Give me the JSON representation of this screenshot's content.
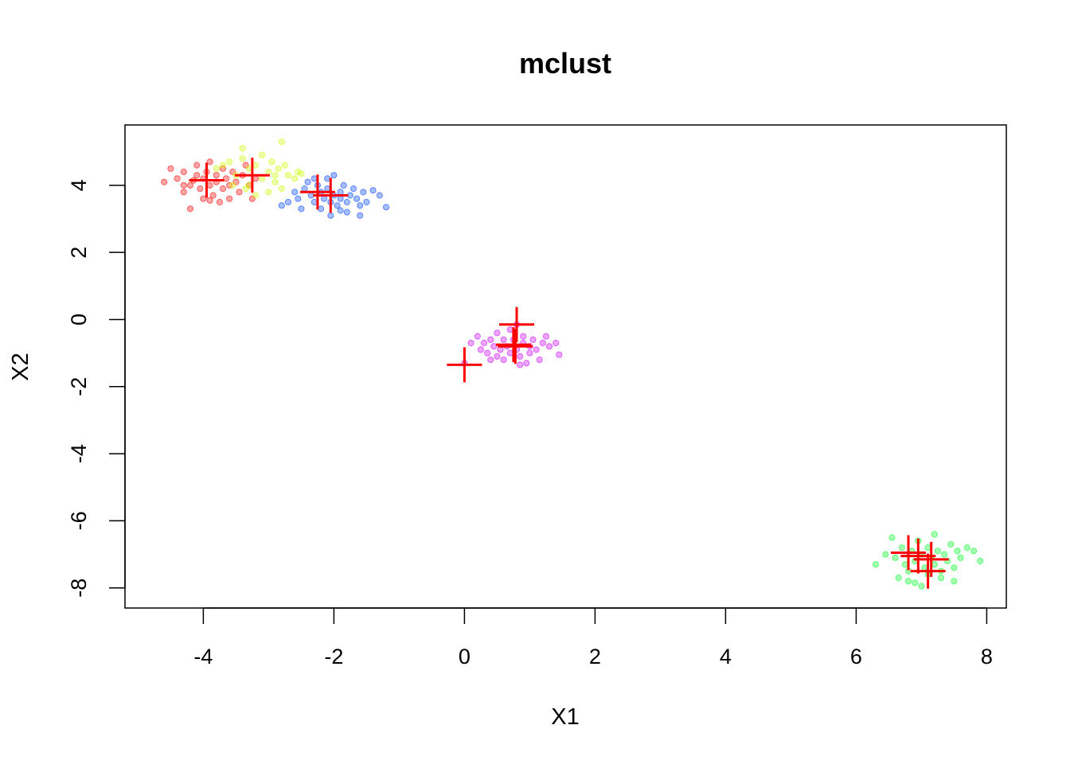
{
  "chart_data": {
    "type": "scatter",
    "title": "mclust",
    "xlabel": "X1",
    "ylabel": "X2",
    "xlim": [
      -5.2,
      8.3
    ],
    "ylim": [
      -8.6,
      5.8
    ],
    "x_ticks": [
      "-4",
      "-2",
      "0",
      "2",
      "4",
      "6",
      "8"
    ],
    "x_tick_values": [
      -4,
      -2,
      0,
      2,
      4,
      6,
      8
    ],
    "y_ticks": [
      "-8",
      "-6",
      "-4",
      "-2",
      "0",
      "2",
      "4"
    ],
    "y_tick_values": [
      -8,
      -6,
      -4,
      -2,
      0,
      2,
      4
    ],
    "grid": false,
    "legend": "none",
    "series": [
      {
        "color": "#ff0000",
        "points": [
          [
            -4.6,
            4.1
          ],
          [
            -4.5,
            4.5
          ],
          [
            -4.4,
            4.2
          ],
          [
            -4.3,
            3.8
          ],
          [
            -4.3,
            4.4
          ],
          [
            -4.2,
            4.0
          ],
          [
            -4.2,
            3.3
          ],
          [
            -4.1,
            4.3
          ],
          [
            -4.1,
            4.6
          ],
          [
            -4.05,
            3.9
          ],
          [
            -4.0,
            4.2
          ],
          [
            -4.0,
            3.6
          ],
          [
            -3.95,
            4.4
          ],
          [
            -3.9,
            4.0
          ],
          [
            -3.9,
            4.7
          ],
          [
            -3.85,
            3.7
          ],
          [
            -3.8,
            4.1
          ],
          [
            -3.8,
            4.3
          ],
          [
            -3.75,
            3.5
          ],
          [
            -3.7,
            4.5
          ],
          [
            -3.7,
            3.9
          ],
          [
            -3.65,
            4.2
          ],
          [
            -3.6,
            4.0
          ],
          [
            -3.6,
            3.6
          ],
          [
            -3.55,
            4.4
          ],
          [
            -3.5,
            4.1
          ],
          [
            -3.45,
            3.8
          ],
          [
            -3.4,
            4.3
          ],
          [
            -3.35,
            4.6
          ],
          [
            -3.3,
            4.0
          ],
          [
            -3.25,
            3.6
          ],
          [
            -3.2,
            4.2
          ],
          [
            -4.15,
            4.15
          ],
          [
            -3.9,
            3.55
          ],
          [
            -4.3,
            4.0
          ]
        ]
      },
      {
        "color": "#ccff00",
        "points": [
          [
            -3.8,
            4.5
          ],
          [
            -3.6,
            4.7
          ],
          [
            -3.5,
            4.3
          ],
          [
            -3.4,
            4.8
          ],
          [
            -3.4,
            5.1
          ],
          [
            -3.3,
            4.0
          ],
          [
            -3.3,
            4.5
          ],
          [
            -3.2,
            4.6
          ],
          [
            -3.1,
            4.2
          ],
          [
            -3.1,
            4.9
          ],
          [
            -3.0,
            4.4
          ],
          [
            -3.0,
            3.8
          ],
          [
            -2.95,
            4.7
          ],
          [
            -2.9,
            4.1
          ],
          [
            -2.85,
            4.5
          ],
          [
            -2.8,
            5.3
          ],
          [
            -2.8,
            3.9
          ],
          [
            -2.75,
            4.6
          ],
          [
            -2.7,
            4.3
          ],
          [
            -2.6,
            4.2
          ],
          [
            -2.55,
            4.4
          ],
          [
            -2.5,
            4.35
          ],
          [
            -3.55,
            4.0
          ],
          [
            -3.2,
            3.7
          ],
          [
            -2.9,
            4.3
          ],
          [
            -3.35,
            3.9
          ],
          [
            -3.7,
            4.6
          ]
        ]
      },
      {
        "color": "#0044ff",
        "points": [
          [
            -2.8,
            3.4
          ],
          [
            -2.7,
            3.5
          ],
          [
            -2.6,
            3.8
          ],
          [
            -2.55,
            3.6
          ],
          [
            -2.5,
            3.3
          ],
          [
            -2.45,
            3.9
          ],
          [
            -2.4,
            4.1
          ],
          [
            -2.35,
            3.7
          ],
          [
            -2.3,
            3.5
          ],
          [
            -2.25,
            4.0
          ],
          [
            -2.2,
            3.8
          ],
          [
            -2.2,
            3.3
          ],
          [
            -2.15,
            3.6
          ],
          [
            -2.1,
            4.2
          ],
          [
            -2.1,
            3.9
          ],
          [
            -2.05,
            3.5
          ],
          [
            -2.0,
            3.7
          ],
          [
            -2.0,
            4.3
          ],
          [
            -1.95,
            3.4
          ],
          [
            -1.9,
            3.8
          ],
          [
            -1.9,
            3.6
          ],
          [
            -1.85,
            4.0
          ],
          [
            -1.8,
            3.5
          ],
          [
            -1.8,
            3.2
          ],
          [
            -1.75,
            3.7
          ],
          [
            -1.7,
            3.9
          ],
          [
            -1.65,
            3.6
          ],
          [
            -1.6,
            3.4
          ],
          [
            -1.6,
            3.1
          ],
          [
            -1.55,
            3.8
          ],
          [
            -1.5,
            3.5
          ],
          [
            -1.4,
            3.85
          ],
          [
            -1.3,
            3.7
          ],
          [
            -1.2,
            3.35
          ],
          [
            -2.05,
            3.1
          ],
          [
            -2.3,
            4.2
          ],
          [
            -1.9,
            3.25
          ]
        ]
      },
      {
        "color": "#cc00ff",
        "points": [
          [
            0.0,
            -1.3
          ],
          [
            0.1,
            -0.7
          ],
          [
            0.2,
            -0.5
          ],
          [
            0.25,
            -0.9
          ],
          [
            0.3,
            -0.7
          ],
          [
            0.35,
            -1.0
          ],
          [
            0.4,
            -0.6
          ],
          [
            0.45,
            -0.8
          ],
          [
            0.5,
            -1.1
          ],
          [
            0.5,
            -0.4
          ],
          [
            0.55,
            -0.9
          ],
          [
            0.6,
            -0.6
          ],
          [
            0.6,
            -1.2
          ],
          [
            0.65,
            -0.8
          ],
          [
            0.7,
            -1.0
          ],
          [
            0.7,
            -0.3
          ],
          [
            0.75,
            -0.6
          ],
          [
            0.8,
            -0.9
          ],
          [
            0.8,
            -0.15
          ],
          [
            0.85,
            -1.1
          ],
          [
            0.9,
            -0.7
          ],
          [
            0.9,
            -0.5
          ],
          [
            0.95,
            -1.3
          ],
          [
            1.0,
            -0.8
          ],
          [
            1.0,
            -1.0
          ],
          [
            1.05,
            -0.6
          ],
          [
            1.1,
            -0.9
          ],
          [
            1.15,
            -1.2
          ],
          [
            1.2,
            -0.7
          ],
          [
            1.25,
            -0.5
          ],
          [
            1.3,
            -0.8
          ],
          [
            1.4,
            -0.7
          ],
          [
            1.45,
            -1.05
          ],
          [
            0.4,
            -1.2
          ],
          [
            0.85,
            -1.35
          ]
        ]
      },
      {
        "color": "#00ff22",
        "points": [
          [
            6.3,
            -7.3
          ],
          [
            6.45,
            -7.0
          ],
          [
            6.55,
            -6.5
          ],
          [
            6.6,
            -7.1
          ],
          [
            6.65,
            -7.7
          ],
          [
            6.7,
            -6.8
          ],
          [
            6.75,
            -7.3
          ],
          [
            6.8,
            -7.5
          ],
          [
            6.85,
            -6.9
          ],
          [
            6.9,
            -7.2
          ],
          [
            6.9,
            -7.85
          ],
          [
            6.95,
            -6.6
          ],
          [
            7.0,
            -7.0
          ],
          [
            7.05,
            -7.4
          ],
          [
            7.1,
            -6.8
          ],
          [
            7.1,
            -7.6
          ],
          [
            7.15,
            -7.1
          ],
          [
            7.2,
            -6.4
          ],
          [
            7.2,
            -7.3
          ],
          [
            7.25,
            -6.9
          ],
          [
            7.3,
            -7.7
          ],
          [
            7.35,
            -7.0
          ],
          [
            7.4,
            -7.2
          ],
          [
            7.45,
            -6.7
          ],
          [
            7.5,
            -7.4
          ],
          [
            7.55,
            -6.9
          ],
          [
            7.6,
            -7.1
          ],
          [
            7.7,
            -6.8
          ],
          [
            7.8,
            -6.9
          ],
          [
            7.9,
            -7.2
          ],
          [
            7.5,
            -7.8
          ],
          [
            7.0,
            -7.95
          ],
          [
            6.8,
            -7.8
          ],
          [
            7.3,
            -7.5
          ]
        ]
      }
    ],
    "centers": {
      "color": "#ff0000",
      "marker": "plus",
      "points": [
        [
          -3.95,
          4.15
        ],
        [
          -3.25,
          4.3
        ],
        [
          -2.25,
          3.8
        ],
        [
          -2.05,
          3.7
        ],
        [
          0.8,
          -0.15
        ],
        [
          0.75,
          -0.75
        ],
        [
          0.78,
          -0.8
        ],
        [
          0.0,
          -1.35
        ],
        [
          6.8,
          -6.95
        ],
        [
          6.95,
          -7.05
        ],
        [
          7.15,
          -7.15
        ],
        [
          7.1,
          -7.5
        ]
      ]
    }
  }
}
